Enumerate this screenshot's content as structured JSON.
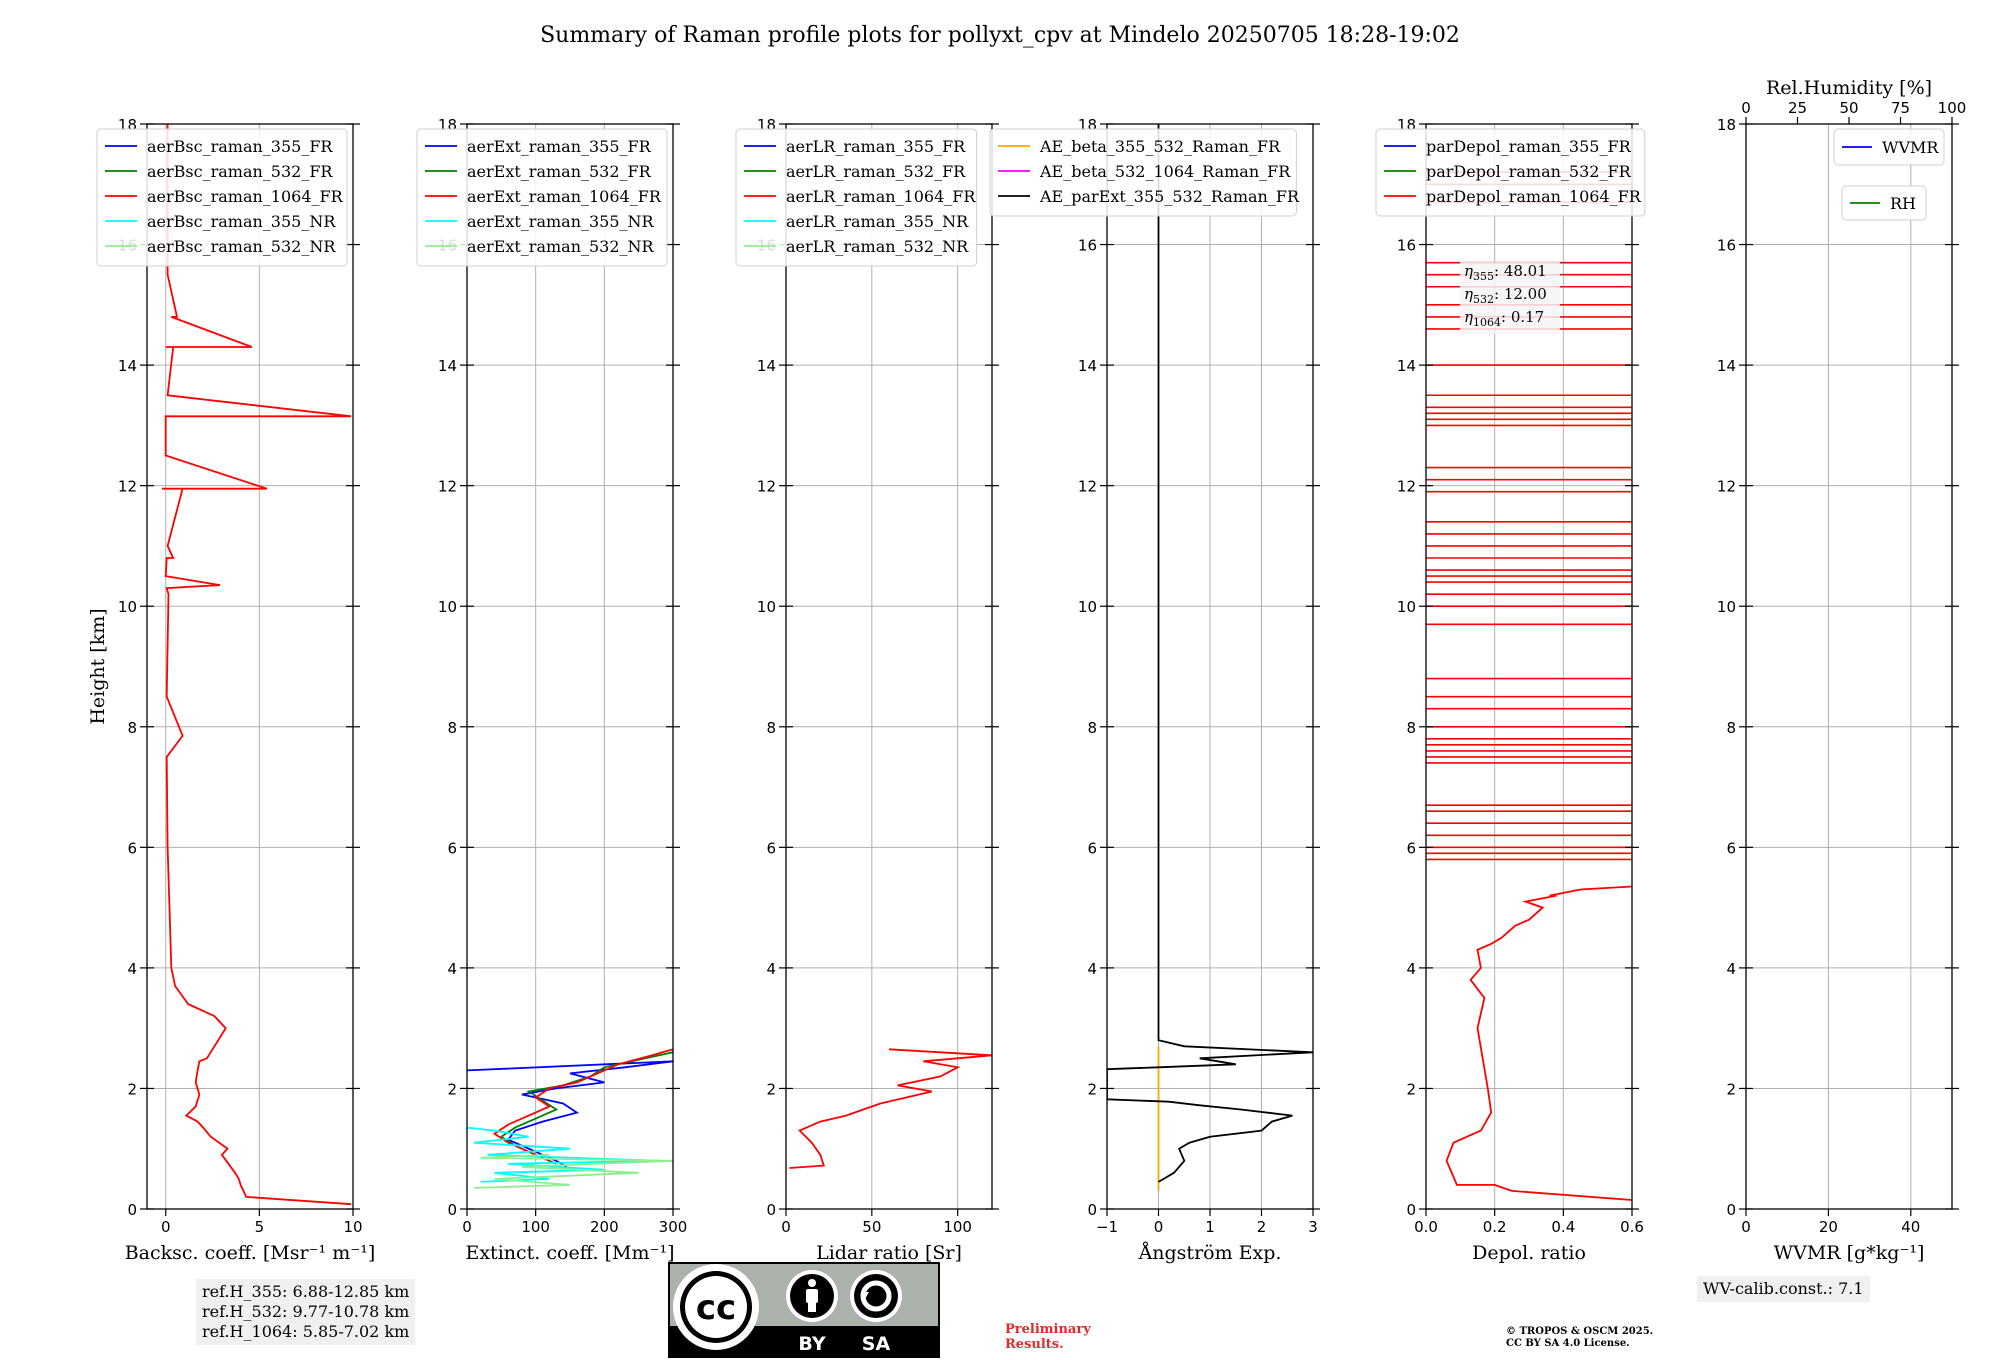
{
  "title": "Summary of Raman profile plots for pollyxt_cpv at Mindelo 20250705 18:28-19:02",
  "chart_data": [
    {
      "type": "line",
      "xlabel": "Backsc. coeff. [Msr⁻¹ m⁻¹]",
      "ylabel": "Height [km]",
      "xlim": [
        -1,
        10
      ],
      "xticks": [
        0,
        5,
        10
      ],
      "ylim": [
        0,
        18
      ],
      "yticks": [
        0,
        2,
        4,
        6,
        8,
        10,
        12,
        14,
        16,
        18
      ],
      "grid": true,
      "legend": "upper left",
      "series": [
        {
          "name": "aerBsc_raman_355_FR",
          "color": "#0000ff",
          "x": [],
          "y": []
        },
        {
          "name": "aerBsc_raman_532_FR",
          "color": "#008000",
          "x": [],
          "y": []
        },
        {
          "name": "aerBsc_raman_1064_FR",
          "color": "#ff0000",
          "x": [
            9.9,
            4.3,
            4.0,
            3.9,
            3.7,
            3.0,
            3.3,
            2.4,
            2.0,
            1.7,
            1.1,
            1.6,
            1.8,
            1.6,
            1.7,
            1.8,
            2.2,
            2.6,
            3.2,
            2.6,
            1.2,
            0.5,
            0.3,
            0.25,
            0.2,
            0.1,
            0.05,
            0.9,
            0.05,
            0.15,
            0.05,
            2.9,
            0.0,
            0.05,
            0.4,
            0.1,
            0.9,
            -0.2,
            5.4,
            0.0,
            0.0,
            9.9,
            0.1,
            0.4,
            0.0,
            4.6,
            0.3,
            0.6,
            0.1,
            0.1
          ],
          "y": [
            0.08,
            0.2,
            0.4,
            0.5,
            0.6,
            0.9,
            1.0,
            1.2,
            1.35,
            1.45,
            1.55,
            1.7,
            1.9,
            2.1,
            2.3,
            2.45,
            2.5,
            2.7,
            3.0,
            3.2,
            3.4,
            3.7,
            4.0,
            4.5,
            5.0,
            6.0,
            7.5,
            7.85,
            8.5,
            10.2,
            10.3,
            10.35,
            10.5,
            10.8,
            10.8,
            11.0,
            11.95,
            11.95,
            11.95,
            12.5,
            13.15,
            13.15,
            13.5,
            14.3,
            14.3,
            14.3,
            14.8,
            14.8,
            15.5,
            18.0
          ]
        },
        {
          "name": "aerBsc_raman_355_NR",
          "color": "#00ffff",
          "x": [],
          "y": []
        },
        {
          "name": "aerBsc_raman_532_NR",
          "color": "#90ee90",
          "x": [],
          "y": []
        }
      ]
    },
    {
      "type": "line",
      "xlabel": "Extinct. coeff. [Mm⁻¹]",
      "xlim": [
        0,
        300
      ],
      "xticks": [
        0,
        100,
        200,
        300
      ],
      "ylim": [
        0,
        18
      ],
      "yticks": [
        0,
        2,
        4,
        6,
        8,
        10,
        12,
        14,
        16,
        18
      ],
      "grid": true,
      "legend": "upper left",
      "series": [
        {
          "name": "aerExt_raman_355_FR",
          "color": "#0000ff",
          "x": [
            145,
            130,
            110,
            90,
            60,
            70,
            110,
            160,
            140,
            80,
            130,
            200,
            150,
            230,
            300,
            0
          ],
          "y": [
            0.7,
            0.8,
            0.9,
            1.0,
            1.15,
            1.3,
            1.45,
            1.6,
            1.75,
            1.9,
            2.0,
            2.1,
            2.25,
            2.35,
            2.45,
            2.3
          ]
        },
        {
          "name": "aerExt_raman_532_FR",
          "color": "#008000",
          "x": [
            130,
            110,
            90,
            70,
            50,
            70,
            100,
            130,
            110,
            90,
            140,
            180,
            200,
            260,
            300
          ],
          "y": [
            0.75,
            0.85,
            0.95,
            1.05,
            1.2,
            1.35,
            1.5,
            1.65,
            1.8,
            1.95,
            2.05,
            2.2,
            2.35,
            2.5,
            2.6
          ]
        },
        {
          "name": "aerExt_raman_1064_FR",
          "color": "#ff0000",
          "x": [
            120,
            100,
            80,
            60,
            40,
            60,
            90,
            120,
            100,
            120,
            160,
            190,
            220,
            270,
            300
          ],
          "y": [
            0.8,
            0.9,
            1.0,
            1.1,
            1.25,
            1.4,
            1.55,
            1.7,
            1.85,
            2.0,
            2.1,
            2.25,
            2.4,
            2.55,
            2.65
          ]
        },
        {
          "name": "aerExt_raman_355_NR",
          "color": "#00ffff",
          "x": [
            20,
            120,
            40,
            200,
            60,
            280,
            30,
            150,
            10,
            90,
            40,
            0
          ],
          "y": [
            0.45,
            0.5,
            0.6,
            0.65,
            0.75,
            0.8,
            0.9,
            1.0,
            1.1,
            1.2,
            1.3,
            1.35
          ]
        },
        {
          "name": "aerExt_raman_532_NR",
          "color": "#90ee90",
          "x": [
            10,
            150,
            40,
            250,
            80,
            300,
            20,
            120
          ],
          "y": [
            0.35,
            0.4,
            0.5,
            0.6,
            0.7,
            0.8,
            0.85,
            0.9
          ]
        }
      ]
    },
    {
      "type": "line",
      "xlabel": "Lidar ratio [Sr]",
      "xlim": [
        0,
        120
      ],
      "xticks": [
        0,
        50,
        100
      ],
      "ylim": [
        0,
        18
      ],
      "yticks": [
        0,
        2,
        4,
        6,
        8,
        10,
        12,
        14,
        16,
        18
      ],
      "grid": true,
      "legend": "upper left",
      "series": [
        {
          "name": "aerLR_raman_355_FR",
          "color": "#0000ff",
          "x": [],
          "y": []
        },
        {
          "name": "aerLR_raman_532_FR",
          "color": "#008000",
          "x": [],
          "y": []
        },
        {
          "name": "aerLR_raman_1064_FR",
          "color": "#ff0000",
          "x": [
            2,
            22,
            20,
            15,
            8,
            20,
            35,
            45,
            55,
            70,
            85,
            65,
            90,
            100,
            80,
            120,
            60
          ],
          "y": [
            0.68,
            0.72,
            0.9,
            1.1,
            1.3,
            1.45,
            1.55,
            1.65,
            1.75,
            1.85,
            1.95,
            2.05,
            2.2,
            2.35,
            2.45,
            2.55,
            2.65
          ]
        },
        {
          "name": "aerLR_raman_355_NR",
          "color": "#00ffff",
          "x": [],
          "y": []
        },
        {
          "name": "aerLR_raman_532_NR",
          "color": "#90ee90",
          "x": [],
          "y": []
        }
      ]
    },
    {
      "type": "line",
      "xlabel": "Ångström Exp.",
      "xlim": [
        -1,
        3
      ],
      "xticks": [
        -1,
        0,
        1,
        2,
        3
      ],
      "ylim": [
        0,
        18
      ],
      "yticks": [
        0,
        2,
        4,
        6,
        8,
        10,
        12,
        14,
        16,
        18
      ],
      "grid": true,
      "legend": "upper left",
      "series": [
        {
          "name": "AE_beta_355_532_Raman_FR",
          "color": "#ffa500",
          "x": [
            0,
            0,
            0,
            0
          ],
          "y": [
            0.3,
            1.0,
            2.0,
            2.7
          ]
        },
        {
          "name": "AE_beta_532_1064_Raman_FR",
          "color": "#ff00ff",
          "x": [],
          "y": []
        },
        {
          "name": "AE_parExt_355_532_Raman_FR",
          "color": "#000000",
          "x": [
            0.0,
            0.3,
            0.5,
            0.4,
            0.6,
            1.0,
            2.0,
            2.2,
            2.6,
            1.6,
            0.8,
            0.2,
            -1.0,
            -1.0,
            0.0,
            1.5,
            0.8,
            3.0,
            0.5,
            0.0,
            0.0
          ],
          "y": [
            0.45,
            0.6,
            0.8,
            1.0,
            1.1,
            1.2,
            1.3,
            1.45,
            1.55,
            1.65,
            1.72,
            1.78,
            1.82,
            2.32,
            2.35,
            2.4,
            2.5,
            2.6,
            2.7,
            2.8,
            18.0
          ]
        }
      ]
    },
    {
      "type": "line",
      "xlabel": "Depol. ratio",
      "xlim": [
        0.0,
        0.6
      ],
      "xticks": [
        0.0,
        0.2,
        0.4,
        0.6
      ],
      "ylim": [
        0,
        18
      ],
      "yticks": [
        0,
        2,
        4,
        6,
        8,
        10,
        12,
        14,
        16,
        18
      ],
      "grid": true,
      "legend": "upper left",
      "annotation": {
        "eta355": "48.01",
        "eta532": "12.00",
        "eta1064": "0.17"
      },
      "series": [
        {
          "name": "parDepol_raman_355_FR",
          "color": "#0000ff",
          "x": [],
          "y": []
        },
        {
          "name": "parDepol_raman_532_FR",
          "color": "#008000",
          "x": [],
          "y": []
        },
        {
          "name": "parDepol_raman_1064_FR",
          "color": "#ff0000",
          "x": [
            0.6,
            0.25,
            0.2,
            0.09,
            0.06,
            0.08,
            0.16,
            0.19,
            0.18,
            0.15,
            0.17,
            0.13,
            0.16,
            0.15,
            0.19,
            0.22,
            0.26,
            0.3,
            0.34,
            0.29,
            0.38,
            0.36,
            0.45,
            0.6
          ],
          "y": [
            0.15,
            0.3,
            0.4,
            0.4,
            0.8,
            1.1,
            1.3,
            1.6,
            2.0,
            3.0,
            3.5,
            3.8,
            4.0,
            4.3,
            4.4,
            4.5,
            4.7,
            4.8,
            5.0,
            5.1,
            5.2,
            5.2,
            5.3,
            5.35
          ],
          "spike_heights_km": [
            5.8,
            5.9,
            6.0,
            6.2,
            6.4,
            6.6,
            6.7,
            7.4,
            7.5,
            7.6,
            7.7,
            7.8,
            8.0,
            8.3,
            8.5,
            8.8,
            9.7,
            10.0,
            10.2,
            10.4,
            10.5,
            10.6,
            10.8,
            11.0,
            11.2,
            11.4,
            11.9,
            12.1,
            12.3,
            13.0,
            13.1,
            13.2,
            13.3,
            13.5,
            14.0,
            14.6,
            14.8,
            15.0,
            15.3,
            15.5,
            15.7,
            16.7,
            17.0,
            17.2
          ]
        }
      ]
    },
    {
      "type": "line",
      "xlabel": "WVMR [g*kg⁻¹]",
      "xlabel_top": "Rel.Humidity [%]",
      "xlim": [
        0,
        50
      ],
      "xticks": [
        0,
        20,
        40
      ],
      "xlim_top": [
        0,
        100
      ],
      "xticks_top": [
        0,
        25,
        50,
        75,
        100
      ],
      "ylim": [
        0,
        18
      ],
      "yticks": [
        0,
        2,
        4,
        6,
        8,
        10,
        12,
        14,
        16,
        18
      ],
      "grid": true,
      "legend": "upper right",
      "series": [
        {
          "name": "WVMR",
          "color": "#0000ff",
          "x": [],
          "y": []
        },
        {
          "name": "RH",
          "color": "#008000",
          "x": [],
          "y": []
        }
      ]
    }
  ],
  "ref_heights": [
    "ref.H_355: 6.88-12.85 km",
    "ref.H_532: 9.77-10.78 km",
    "ref.H_1064: 5.85-7.02 km"
  ],
  "wv_calib": "WV-calib.const.: 7.1",
  "license_badge": {
    "left": "cc",
    "by": "BY",
    "sa": "SA"
  },
  "preliminary": [
    "Preliminary",
    "Results."
  ],
  "copyright": [
    "© TROPOS & OSCM 2025.",
    "CC BY SA 4.0 License."
  ]
}
